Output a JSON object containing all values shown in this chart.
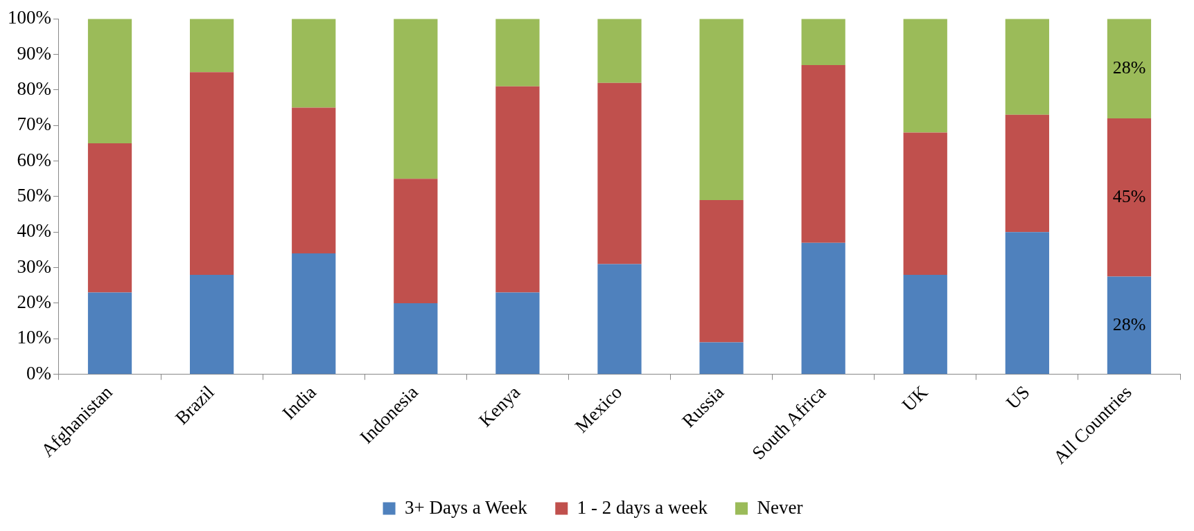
{
  "chart_data": {
    "type": "bar",
    "stacked": true,
    "categories": [
      "Afghanistan",
      "Brazil",
      "India",
      "Indonesia",
      "Kenya",
      "Mexico",
      "Russia",
      "South Africa",
      "UK",
      "US",
      "All Countries"
    ],
    "series": [
      {
        "name": "3+ Days a Week",
        "color": "#4f81bd",
        "values": [
          23,
          28,
          34,
          20,
          23,
          31,
          9,
          37,
          28,
          40,
          27.5
        ],
        "value_labels": [
          null,
          null,
          null,
          null,
          null,
          null,
          null,
          null,
          null,
          null,
          "28%"
        ]
      },
      {
        "name": "1 - 2 days a week",
        "color": "#c0504d",
        "values": [
          42,
          57,
          41,
          35,
          58,
          51,
          40,
          50,
          40,
          33,
          44.5
        ],
        "value_labels": [
          null,
          null,
          null,
          null,
          null,
          null,
          null,
          null,
          null,
          null,
          "45%"
        ]
      },
      {
        "name": "Never",
        "color": "#9bbb59",
        "values": [
          35,
          15,
          25,
          45,
          19,
          18,
          51,
          13,
          32,
          27,
          28
        ],
        "value_labels": [
          null,
          null,
          null,
          null,
          null,
          null,
          null,
          null,
          null,
          null,
          "28%"
        ]
      }
    ],
    "ylim": [
      0,
      100
    ],
    "yticks": [
      {
        "value": 0,
        "label": "0%"
      },
      {
        "value": 10,
        "label": "10%"
      },
      {
        "value": 20,
        "label": "20%"
      },
      {
        "value": 30,
        "label": "30%"
      },
      {
        "value": 40,
        "label": "40%"
      },
      {
        "value": 50,
        "label": "50%"
      },
      {
        "value": 60,
        "label": "60%"
      },
      {
        "value": 70,
        "label": "70%"
      },
      {
        "value": 80,
        "label": "80%"
      },
      {
        "value": 90,
        "label": "90%"
      },
      {
        "value": 100,
        "label": "100%"
      }
    ],
    "legend": "bottom"
  }
}
